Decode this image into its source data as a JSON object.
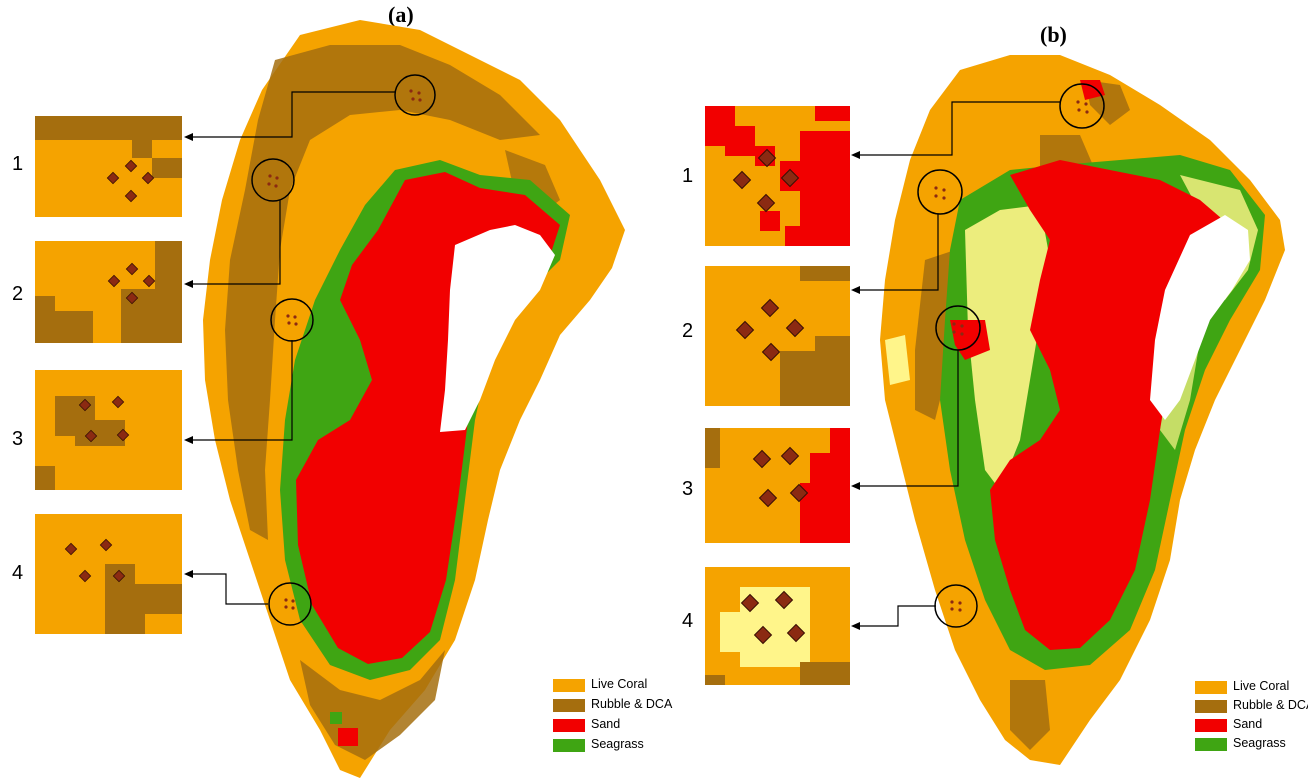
{
  "panels": [
    {
      "id": "a",
      "title": "(a)",
      "insets": [
        {
          "number": "1"
        },
        {
          "number": "2"
        },
        {
          "number": "3"
        },
        {
          "number": "4"
        }
      ]
    },
    {
      "id": "b",
      "title": "(b)",
      "insets": [
        {
          "number": "1"
        },
        {
          "number": "2"
        },
        {
          "number": "3"
        },
        {
          "number": "4"
        }
      ]
    }
  ],
  "legend": [
    {
      "label": "Live Coral",
      "color": "#F5A300"
    },
    {
      "label": "Rubble & DCA",
      "color": "#A56E0E"
    },
    {
      "label": "Sand",
      "color": "#F20000"
    },
    {
      "label": "Seagrass",
      "color": "#3FA513"
    }
  ],
  "extra_class_color": "#FFF58A",
  "marker_color": "#8B2A12"
}
